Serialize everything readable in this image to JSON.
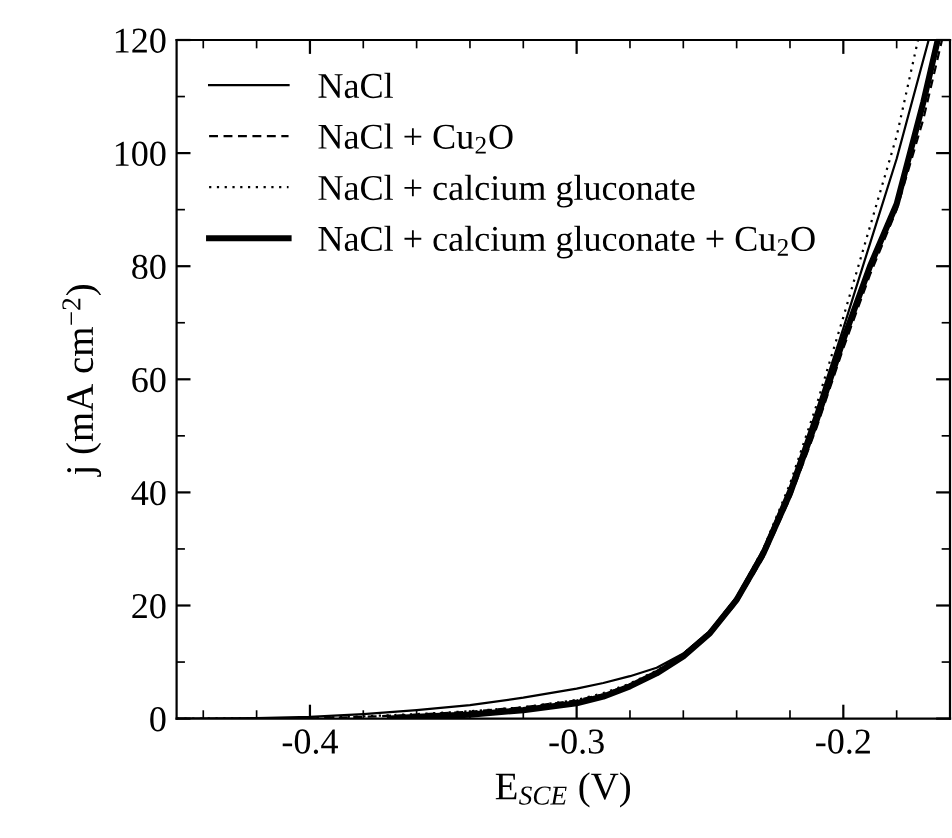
{
  "chart_data": {
    "type": "line",
    "xlabel": "E$_{SCE}$ (V)",
    "ylabel": "j (mA cm$^{−2}$)",
    "xlim": [
      -0.45,
      -0.16
    ],
    "ylim": [
      0,
      120
    ],
    "xticks": [
      -0.4,
      -0.3,
      -0.2
    ],
    "yticks": [
      0,
      20,
      40,
      60,
      80,
      100,
      120
    ],
    "grid": false,
    "legend": "top left",
    "marker": "none",
    "series": [
      {
        "name": "NaCl",
        "color": "#000000",
        "line_style": "solid",
        "x": [
          -0.45,
          -0.42,
          -0.4,
          -0.38,
          -0.36,
          -0.34,
          -0.32,
          -0.3,
          -0.29,
          -0.28,
          -0.27,
          -0.26,
          -0.25,
          -0.24,
          -0.23,
          -0.22,
          -0.21,
          -0.2,
          -0.19,
          -0.18,
          -0.168
        ],
        "values": [
          0,
          0.1,
          0.3,
          0.8,
          1.5,
          2.4,
          3.7,
          5.3,
          6.3,
          7.5,
          9,
          11.5,
          15.5,
          21.5,
          30,
          41,
          54.5,
          69,
          84,
          99,
          120
        ]
      },
      {
        "name": "NaCl + Cu$_{2}$O",
        "color": "#000000",
        "line_style": "dashed",
        "x": [
          -0.4,
          -0.38,
          -0.36,
          -0.34,
          -0.32,
          -0.3,
          -0.29,
          -0.28,
          -0.27,
          -0.26,
          -0.25,
          -0.24,
          -0.23,
          -0.22,
          -0.21,
          -0.2,
          -0.19,
          -0.18,
          -0.17,
          -0.163
        ],
        "values": [
          0,
          0.3,
          0.7,
          1.2,
          2,
          3.2,
          4.3,
          6,
          8.3,
          11,
          14.8,
          20.5,
          28.5,
          39,
          51.5,
          65.5,
          78.5,
          90,
          106,
          120
        ]
      },
      {
        "name": "NaCl + calcium gluconate",
        "color": "#000000",
        "line_style": "dotted",
        "x": [
          -0.45,
          -0.4,
          -0.38,
          -0.36,
          -0.34,
          -0.32,
          -0.3,
          -0.29,
          -0.28,
          -0.27,
          -0.26,
          -0.25,
          -0.24,
          -0.23,
          -0.22,
          -0.21,
          -0.2,
          -0.19,
          -0.18,
          -0.172
        ],
        "values": [
          0,
          0.1,
          0.4,
          0.8,
          1.3,
          2.0,
          3.3,
          4.5,
          6.2,
          8.5,
          11.5,
          15.5,
          21.5,
          30,
          41.5,
          55.5,
          71,
          87,
          103,
          120
        ]
      },
      {
        "name": "NaCl + calcium gluconate + Cu$_{2}$O",
        "color": "#000000",
        "line_style": "solid",
        "x": [
          -0.37,
          -0.36,
          -0.34,
          -0.32,
          -0.3,
          -0.29,
          -0.28,
          -0.27,
          -0.26,
          -0.25,
          -0.24,
          -0.23,
          -0.22,
          -0.21,
          -0.2,
          -0.19,
          -0.18,
          -0.17,
          -0.1646
        ],
        "values": [
          0,
          0.3,
          0.7,
          1.5,
          2.7,
          3.9,
          5.7,
          8,
          11,
          15.1,
          21,
          29.2,
          39.8,
          52.8,
          67,
          80,
          91,
          109,
          120
        ]
      }
    ]
  }
}
